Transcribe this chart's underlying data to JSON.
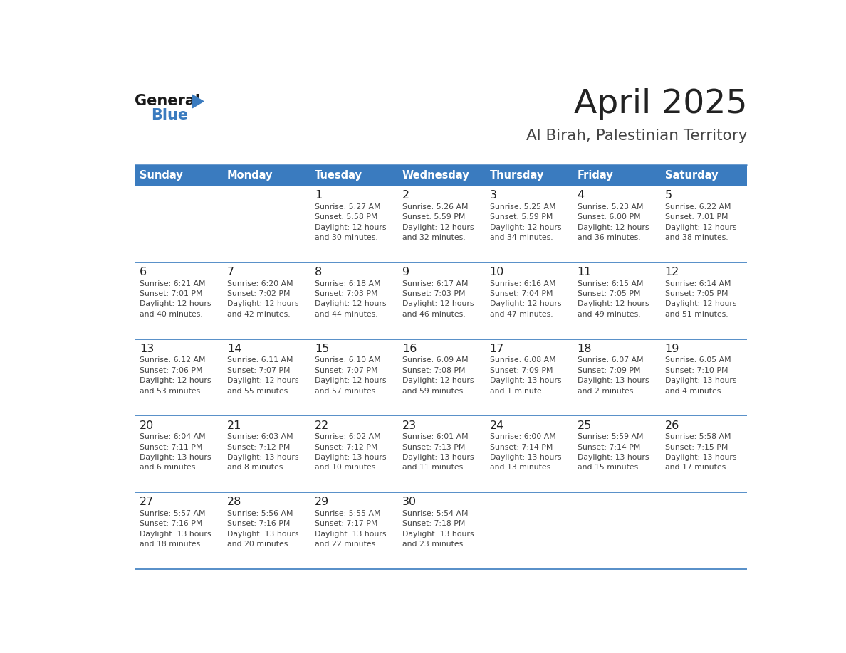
{
  "title": "April 2025",
  "subtitle": "Al Birah, Palestinian Territory",
  "days_of_week": [
    "Sunday",
    "Monday",
    "Tuesday",
    "Wednesday",
    "Thursday",
    "Friday",
    "Saturday"
  ],
  "header_bg": "#3a7bbf",
  "header_text": "#ffffff",
  "row_bg": "#ffffff",
  "cell_text_color": "#444444",
  "day_num_color": "#222222",
  "border_color": "#3a7bbf",
  "title_color": "#222222",
  "subtitle_color": "#444444",
  "logo_general_color": "#1a1a1a",
  "logo_blue_color": "#3a7bbf",
  "weeks": [
    [
      {
        "day": null,
        "info": null
      },
      {
        "day": null,
        "info": null
      },
      {
        "day": "1",
        "info": "Sunrise: 5:27 AM\nSunset: 5:58 PM\nDaylight: 12 hours\nand 30 minutes."
      },
      {
        "day": "2",
        "info": "Sunrise: 5:26 AM\nSunset: 5:59 PM\nDaylight: 12 hours\nand 32 minutes."
      },
      {
        "day": "3",
        "info": "Sunrise: 5:25 AM\nSunset: 5:59 PM\nDaylight: 12 hours\nand 34 minutes."
      },
      {
        "day": "4",
        "info": "Sunrise: 5:23 AM\nSunset: 6:00 PM\nDaylight: 12 hours\nand 36 minutes."
      },
      {
        "day": "5",
        "info": "Sunrise: 6:22 AM\nSunset: 7:01 PM\nDaylight: 12 hours\nand 38 minutes."
      }
    ],
    [
      {
        "day": "6",
        "info": "Sunrise: 6:21 AM\nSunset: 7:01 PM\nDaylight: 12 hours\nand 40 minutes."
      },
      {
        "day": "7",
        "info": "Sunrise: 6:20 AM\nSunset: 7:02 PM\nDaylight: 12 hours\nand 42 minutes."
      },
      {
        "day": "8",
        "info": "Sunrise: 6:18 AM\nSunset: 7:03 PM\nDaylight: 12 hours\nand 44 minutes."
      },
      {
        "day": "9",
        "info": "Sunrise: 6:17 AM\nSunset: 7:03 PM\nDaylight: 12 hours\nand 46 minutes."
      },
      {
        "day": "10",
        "info": "Sunrise: 6:16 AM\nSunset: 7:04 PM\nDaylight: 12 hours\nand 47 minutes."
      },
      {
        "day": "11",
        "info": "Sunrise: 6:15 AM\nSunset: 7:05 PM\nDaylight: 12 hours\nand 49 minutes."
      },
      {
        "day": "12",
        "info": "Sunrise: 6:14 AM\nSunset: 7:05 PM\nDaylight: 12 hours\nand 51 minutes."
      }
    ],
    [
      {
        "day": "13",
        "info": "Sunrise: 6:12 AM\nSunset: 7:06 PM\nDaylight: 12 hours\nand 53 minutes."
      },
      {
        "day": "14",
        "info": "Sunrise: 6:11 AM\nSunset: 7:07 PM\nDaylight: 12 hours\nand 55 minutes."
      },
      {
        "day": "15",
        "info": "Sunrise: 6:10 AM\nSunset: 7:07 PM\nDaylight: 12 hours\nand 57 minutes."
      },
      {
        "day": "16",
        "info": "Sunrise: 6:09 AM\nSunset: 7:08 PM\nDaylight: 12 hours\nand 59 minutes."
      },
      {
        "day": "17",
        "info": "Sunrise: 6:08 AM\nSunset: 7:09 PM\nDaylight: 13 hours\nand 1 minute."
      },
      {
        "day": "18",
        "info": "Sunrise: 6:07 AM\nSunset: 7:09 PM\nDaylight: 13 hours\nand 2 minutes."
      },
      {
        "day": "19",
        "info": "Sunrise: 6:05 AM\nSunset: 7:10 PM\nDaylight: 13 hours\nand 4 minutes."
      }
    ],
    [
      {
        "day": "20",
        "info": "Sunrise: 6:04 AM\nSunset: 7:11 PM\nDaylight: 13 hours\nand 6 minutes."
      },
      {
        "day": "21",
        "info": "Sunrise: 6:03 AM\nSunset: 7:12 PM\nDaylight: 13 hours\nand 8 minutes."
      },
      {
        "day": "22",
        "info": "Sunrise: 6:02 AM\nSunset: 7:12 PM\nDaylight: 13 hours\nand 10 minutes."
      },
      {
        "day": "23",
        "info": "Sunrise: 6:01 AM\nSunset: 7:13 PM\nDaylight: 13 hours\nand 11 minutes."
      },
      {
        "day": "24",
        "info": "Sunrise: 6:00 AM\nSunset: 7:14 PM\nDaylight: 13 hours\nand 13 minutes."
      },
      {
        "day": "25",
        "info": "Sunrise: 5:59 AM\nSunset: 7:14 PM\nDaylight: 13 hours\nand 15 minutes."
      },
      {
        "day": "26",
        "info": "Sunrise: 5:58 AM\nSunset: 7:15 PM\nDaylight: 13 hours\nand 17 minutes."
      }
    ],
    [
      {
        "day": "27",
        "info": "Sunrise: 5:57 AM\nSunset: 7:16 PM\nDaylight: 13 hours\nand 18 minutes."
      },
      {
        "day": "28",
        "info": "Sunrise: 5:56 AM\nSunset: 7:16 PM\nDaylight: 13 hours\nand 20 minutes."
      },
      {
        "day": "29",
        "info": "Sunrise: 5:55 AM\nSunset: 7:17 PM\nDaylight: 13 hours\nand 22 minutes."
      },
      {
        "day": "30",
        "info": "Sunrise: 5:54 AM\nSunset: 7:18 PM\nDaylight: 13 hours\nand 23 minutes."
      },
      {
        "day": null,
        "info": null
      },
      {
        "day": null,
        "info": null
      },
      {
        "day": null,
        "info": null
      }
    ]
  ]
}
